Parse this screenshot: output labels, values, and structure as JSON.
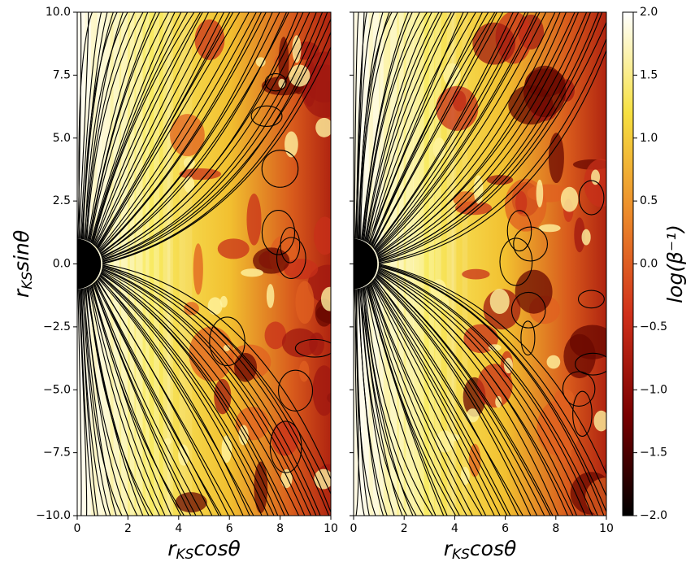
{
  "chart_data": [
    {
      "type": "heatmap",
      "xlabel": {
        "base": "r",
        "sub": "KS",
        "rest": "cosθ"
      },
      "ylabel": {
        "base": "r",
        "sub": "KS",
        "rest": "sinθ"
      },
      "xlim": [
        0,
        10
      ],
      "ylim": [
        -10,
        10
      ],
      "xticks": [
        0,
        2,
        4,
        6,
        8,
        10
      ],
      "yticks": [
        {
          "value": -10,
          "label": "−10.0"
        },
        {
          "value": -7.5,
          "label": "−7.5"
        },
        {
          "value": -5,
          "label": "−5.0"
        },
        {
          "value": -2.5,
          "label": "−2.5"
        },
        {
          "value": 0,
          "label": "0.0"
        },
        {
          "value": 2.5,
          "label": "2.5"
        },
        {
          "value": 5,
          "label": "5.0"
        },
        {
          "value": 7.5,
          "label": "7.5"
        },
        {
          "value": 10,
          "label": "10.0"
        }
      ]
    },
    {
      "type": "heatmap",
      "xlabel": {
        "base": "r",
        "sub": "KS",
        "rest": "cosθ"
      },
      "xlim": [
        0,
        10
      ],
      "ylim": [
        -10,
        10
      ],
      "xticks": [
        0,
        2,
        4,
        6,
        8,
        10
      ]
    },
    {
      "type": "colorbar",
      "label": "log(β⁻¹)",
      "ylim": [
        -2,
        2
      ],
      "colors": [
        "#000000",
        "#7a0000",
        "#d0301a",
        "#ec8a2a",
        "#f6e040",
        "#ffffff"
      ],
      "yticks": [
        {
          "value": -2,
          "label": "−2.0"
        },
        {
          "value": -1.5,
          "label": "−1.5"
        },
        {
          "value": -1,
          "label": "−1.0"
        },
        {
          "value": -0.5,
          "label": "−0.5"
        },
        {
          "value": 0,
          "label": "0.0"
        },
        {
          "value": 0.5,
          "label": "0.5"
        },
        {
          "value": 1,
          "label": "1.0"
        },
        {
          "value": 1.5,
          "label": "1.5"
        },
        {
          "value": 2,
          "label": "2.0"
        }
      ]
    }
  ]
}
